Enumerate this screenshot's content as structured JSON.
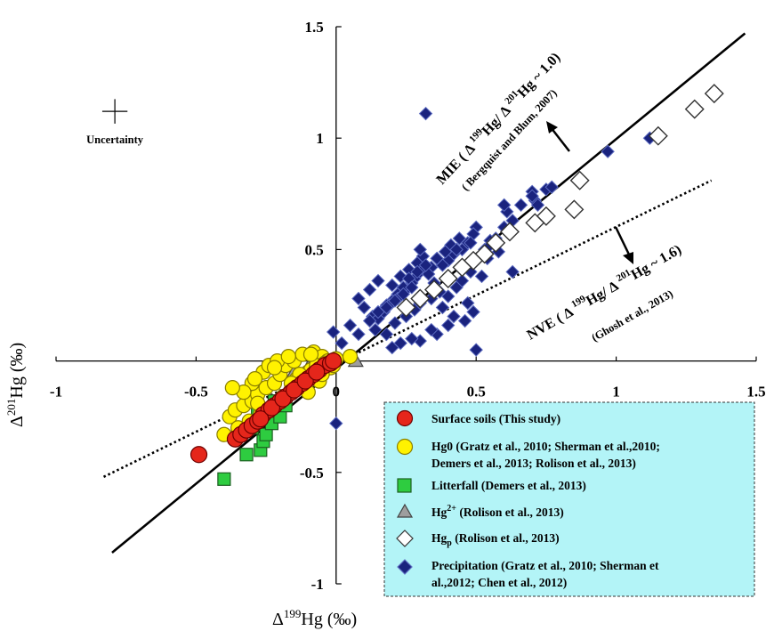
{
  "chart_data": {
    "type": "scatter",
    "xlabel_prefix": "Δ",
    "xlabel_iso": "199",
    "xlabel_suffix": "Hg (‰)",
    "ylabel_prefix": "Δ",
    "ylabel_iso": "201",
    "ylabel_suffix": "Hg (‰)",
    "xlim": [
      -1,
      1.5
    ],
    "ylim": [
      -1,
      1.5
    ],
    "xticks": [
      "-1",
      "-0.5",
      "0",
      "0.5",
      "1",
      "1.5"
    ],
    "yticks": [
      "-1",
      "-0.5",
      "0.5",
      "1",
      "1.5"
    ],
    "uncertainty": {
      "label": "Uncertainty",
      "x": -0.79,
      "y": 1.12,
      "ex": 0.045,
      "ey": 0.055
    },
    "lines": [
      {
        "name": "MIE",
        "style": "solid",
        "x": [
          -0.8,
          1.46
        ],
        "y": [
          -0.86,
          1.47
        ],
        "annotation": "MIE ( Δ 199Hg/ Δ 201Hg ~ 1.0)",
        "annotation_parts": {
          "a": "MIE ( Δ ",
          "b": "199",
          "c": "Hg/ Δ ",
          "d": "201",
          "e": "Hg ~ 1.0)"
        },
        "source": "( Bergquist and Blum, 2007)"
      },
      {
        "name": "NVE",
        "style": "dotted",
        "x": [
          -0.83,
          1.34
        ],
        "y": [
          -0.52,
          0.81
        ],
        "annotation": "NVE ( Δ 199Hg/ Δ 201Hg ~ 1.6)",
        "annotation_parts": {
          "a": "NVE ( Δ ",
          "b": "199",
          "c": "Hg/ Δ ",
          "d": "201",
          "e": "Hg ~ 1.6)"
        },
        "source": "(Ghosh et al., 2013)"
      }
    ],
    "series": [
      {
        "key": "precip",
        "name": "Precipitation (Gratz et al., 2010; Sherman et al.,2012; Chen et al., 2012)",
        "legend_lines": [
          "Precipitation (Gratz et al., 2010; Sherman et",
          "al.,2012; Chen et al., 2012)"
        ],
        "marker": "diamond",
        "color": "#1a237e",
        "edge": "#5c6bc0",
        "x": [
          0.32,
          0.97,
          1.12,
          0.75,
          0.71,
          0.7,
          0.66,
          0.61,
          0.63,
          0.57,
          0.55,
          0.6,
          0.5,
          0.49,
          0.47,
          0.45,
          0.42,
          0.4,
          0.38,
          0.36,
          0.34,
          0.3,
          0.28,
          0.27,
          0.25,
          0.22,
          0.2,
          0.18,
          0.16,
          0.13,
          0.1,
          0.08,
          0.12,
          0.15,
          0.2,
          0.23,
          0.26,
          0.29,
          0.31,
          0.33,
          0.35,
          0.37,
          0.4,
          0.43,
          0.45,
          0.48,
          0.5,
          0.53,
          0.44,
          0.41,
          0.39,
          0.36,
          0.32,
          0.29,
          0.26,
          0.24,
          0.22,
          0.19,
          0.17,
          0.15,
          0.14,
          0.18,
          0.21,
          0.25,
          0.28,
          0.3,
          0.34,
          0.38,
          0.42,
          0.46,
          0.49,
          0.47,
          0.4,
          0.36,
          0.3,
          0.27,
          0.23,
          0.2,
          0.34,
          0.5,
          0.48,
          0.43,
          0.6,
          0.63,
          0.72,
          0.7,
          0.77,
          0.3,
          -0.01,
          0.0,
          0.02,
          0.05,
          0.08,
          0.12,
          0.15,
          0.18,
          0.21,
          0.24,
          0.27,
          0.44,
          0.52,
          0.54,
          0.55,
          0.58
        ],
        "y": [
          1.11,
          0.94,
          1.0,
          0.77,
          0.72,
          0.76,
          0.7,
          0.67,
          0.63,
          0.55,
          0.54,
          0.6,
          0.6,
          0.57,
          0.53,
          0.5,
          0.48,
          0.45,
          0.43,
          0.46,
          0.42,
          0.4,
          0.37,
          0.35,
          0.32,
          0.3,
          0.27,
          0.25,
          0.22,
          0.2,
          0.24,
          0.28,
          0.32,
          0.36,
          0.34,
          0.38,
          0.41,
          0.44,
          0.47,
          0.39,
          0.35,
          0.31,
          0.29,
          0.33,
          0.36,
          0.4,
          0.45,
          0.5,
          0.55,
          0.52,
          0.49,
          0.46,
          0.43,
          0.4,
          0.37,
          0.33,
          0.28,
          0.25,
          0.22,
          0.19,
          0.14,
          0.12,
          0.17,
          0.2,
          0.23,
          0.26,
          0.28,
          0.24,
          0.2,
          0.18,
          0.22,
          0.26,
          0.16,
          0.12,
          0.09,
          0.1,
          0.08,
          0.06,
          0.14,
          0.05,
          0.53,
          0.5,
          0.7,
          0.4,
          0.7,
          0.74,
          0.78,
          0.5,
          0.13,
          -0.28,
          0.08,
          0.16,
          0.12,
          0.18,
          0.22,
          0.24,
          0.27,
          0.3,
          0.33,
          0.42,
          0.38,
          0.46,
          0.52,
          0.49
        ]
      },
      {
        "key": "hgp",
        "name": "Hgp (Rolison et al., 2013)",
        "legend_main": "Hg",
        "legend_sub": "p",
        "legend_rest": " (Rolison et al., 2013)",
        "marker": "diamond-open",
        "color": "#ffffff",
        "edge": "#333333",
        "x": [
          1.35,
          1.28,
          1.15,
          0.87,
          0.85,
          0.75,
          0.71,
          0.62,
          0.57,
          0.53,
          0.49,
          0.45,
          0.4,
          0.35,
          0.3,
          0.25
        ],
        "y": [
          1.2,
          1.13,
          1.01,
          0.81,
          0.68,
          0.65,
          0.62,
          0.58,
          0.53,
          0.48,
          0.45,
          0.42,
          0.37,
          0.32,
          0.28,
          0.24
        ]
      },
      {
        "key": "hg2",
        "name": "Hg2+ (Rolison et al., 2013)",
        "legend_main": "Hg",
        "legend_sup": "2+",
        "legend_rest": " (Rolison et al., 2013)",
        "marker": "triangle",
        "color": "#9e9e9e",
        "edge": "#424242",
        "x": [
          0.07,
          -0.1,
          -0.12,
          -0.17,
          -0.2,
          -0.24,
          -0.27,
          -0.3,
          -0.15,
          -0.06
        ],
        "y": [
          0.0,
          -0.03,
          -0.07,
          -0.12,
          -0.16,
          -0.2,
          -0.25,
          -0.1,
          -0.05,
          0.0
        ],
        "note": "partially hidden behind other markers"
      },
      {
        "key": "litter",
        "name": "Litterfall (Demers et al., 2013)",
        "marker": "square",
        "color": "#2ecc40",
        "edge": "#1b5e20",
        "x": [
          -0.4,
          -0.32,
          -0.27,
          -0.26,
          -0.3,
          -0.25,
          -0.23,
          -0.2,
          -0.18,
          -0.35,
          -0.28,
          -0.22
        ],
        "y": [
          -0.53,
          -0.42,
          -0.4,
          -0.36,
          -0.3,
          -0.33,
          -0.28,
          -0.25,
          -0.2,
          -0.32,
          -0.22,
          -0.18
        ]
      },
      {
        "key": "hg0",
        "name": "Hg0 (Gratz et al., 2010; Sherman et al.,2010; Demers et al., 2013; Rolison et al., 2013)",
        "legend_lines": [
          "Hg0 (Gratz et al., 2010; Sherman et al.,2010;",
          "Demers et al., 2013; Rolison et al., 2013)"
        ],
        "marker": "circle",
        "color": "#fff200",
        "edge": "#8a7f00",
        "x": [
          -0.4,
          -0.38,
          -0.36,
          -0.33,
          -0.3,
          -0.28,
          -0.25,
          -0.22,
          -0.2,
          -0.18,
          -0.15,
          -0.12,
          -0.1,
          -0.08,
          -0.05,
          -0.03,
          0.0,
          0.05,
          -0.35,
          -0.31,
          -0.27,
          -0.23,
          -0.19,
          -0.16,
          -0.13,
          -0.11,
          -0.09,
          -0.07,
          -0.04,
          -0.02,
          -0.3,
          -0.26,
          -0.24,
          -0.21,
          -0.17,
          -0.14,
          -0.12,
          -0.06,
          -0.33,
          -0.28,
          -0.19,
          -0.13,
          -0.09,
          -0.05,
          -0.01,
          -0.37,
          -0.29,
          -0.22,
          -0.16,
          -0.1
        ],
        "y": [
          -0.33,
          -0.25,
          -0.22,
          -0.2,
          -0.18,
          -0.15,
          -0.12,
          -0.1,
          -0.06,
          -0.02,
          0.0,
          0.03,
          -0.05,
          0.04,
          0.02,
          0.0,
          0.01,
          0.02,
          -0.3,
          -0.27,
          -0.24,
          -0.21,
          -0.17,
          -0.13,
          -0.1,
          -0.07,
          -0.04,
          -0.02,
          -0.01,
          -0.03,
          -0.1,
          -0.05,
          -0.02,
          0.0,
          0.02,
          -0.08,
          -0.12,
          -0.09,
          -0.14,
          -0.19,
          -0.16,
          -0.06,
          0.03,
          -0.06,
          -0.02,
          -0.12,
          -0.08,
          -0.03,
          -0.1,
          -0.14
        ]
      },
      {
        "key": "soil",
        "name": "Surface soils (This study)",
        "marker": "circle",
        "color": "#e5261b",
        "edge": "#6d0000",
        "x": [
          -0.49,
          -0.36,
          -0.34,
          -0.32,
          -0.3,
          -0.28,
          -0.26,
          -0.24,
          -0.22,
          -0.2,
          -0.18,
          -0.16,
          -0.14,
          -0.12,
          -0.1,
          -0.08,
          -0.06,
          -0.04,
          -0.02,
          -0.01,
          -0.27,
          -0.23,
          -0.19,
          -0.15,
          -0.11,
          -0.07
        ],
        "y": [
          -0.42,
          -0.35,
          -0.33,
          -0.31,
          -0.29,
          -0.27,
          -0.24,
          -0.22,
          -0.2,
          -0.18,
          -0.16,
          -0.14,
          -0.12,
          -0.1,
          -0.08,
          -0.06,
          -0.04,
          -0.02,
          -0.01,
          0.0,
          -0.26,
          -0.21,
          -0.17,
          -0.13,
          -0.09,
          -0.05
        ]
      }
    ],
    "legend": {
      "placement": "bottom-right",
      "background": "#b3f4f7",
      "border": "#333333",
      "order": [
        "soil",
        "hg0",
        "litter",
        "hg2",
        "hgp",
        "precip"
      ]
    }
  }
}
